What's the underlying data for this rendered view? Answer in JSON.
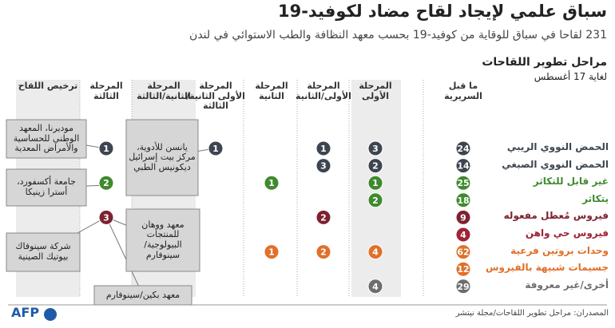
{
  "header": {
    "title": "سباق علمي لإيجاد لقاح مضاد لكوفيد-19",
    "subtitle": "231 لقاحا في سباق للوقاية من كوفيد-19 بحسب معهد النظافة والطب الاستوائي في لندن",
    "section": "مراحل تطوير اللقاحات",
    "date": "لغاية 17 أغسطس"
  },
  "table": {
    "columns": [
      "ما قبل السريرية",
      "المرحلة الأولى",
      "المرحلة الأولى/الثانية",
      "المرحلة الثانية",
      "المرحلة الأولى الثانية/الثالثة",
      "المرحلة الثانية/الثالثة",
      "المرحلة الثالثة",
      "ترخيص اللقاح"
    ],
    "rows": [
      {
        "label": "الحمض النووي الريبي",
        "color": "#3d4650",
        "values": [
          24,
          3,
          1,
          null,
          1,
          null,
          1,
          null
        ]
      },
      {
        "label": "الحمض النووي الصبغي",
        "color": "#3d4650",
        "values": [
          14,
          2,
          3,
          null,
          null,
          null,
          null,
          null
        ]
      },
      {
        "label": "غير قابل للتكاثر",
        "color": "#3f8a2e",
        "values": [
          25,
          1,
          null,
          1,
          null,
          null,
          2,
          null
        ]
      },
      {
        "label": "يتكاثر",
        "color": "#3f8a2e",
        "values": [
          18,
          2,
          null,
          null,
          null,
          null,
          null,
          null
        ]
      },
      {
        "label": "فيروس مُعطل مفعوله",
        "color": "#7d2230",
        "values": [
          9,
          null,
          2,
          null,
          null,
          null,
          3,
          null
        ]
      },
      {
        "label": "فيروس حي واهن",
        "color": "#9e2336",
        "values": [
          4,
          null,
          null,
          null,
          null,
          null,
          null,
          null
        ]
      },
      {
        "label": "وحدات بروتين فرعية",
        "color": "#e0702a",
        "values": [
          62,
          4,
          2,
          1,
          null,
          null,
          null,
          null
        ]
      },
      {
        "label": "جسيمات شبيهة بالفيروس",
        "color": "#e0702a",
        "values": [
          12,
          null,
          null,
          null,
          null,
          null,
          null,
          null
        ]
      },
      {
        "label": "أخرى/غير معروفة",
        "color": "#6d6d6d",
        "values": [
          29,
          4,
          null,
          null,
          null,
          null,
          null,
          null
        ]
      }
    ]
  },
  "callouts": [
    "موديرنا، المعهد الوطني للحساسية والأمراض المعدية",
    "يانسن للأدوية، مركز بيت إسرائيل ديكونيس الطبي",
    "جامعة أكسفورد، أسترا زينيكا",
    "معهد ووهان للمنتجات البيولوجية/ سينوفارم",
    "شركة سينوفاك بيوتيك الصينية",
    "معهد بكين/سينوفارم"
  ],
  "footer": {
    "source": "المصدران: مراحل تطوير اللقاحات/مجلة نيتشر",
    "logo": "AFP"
  }
}
